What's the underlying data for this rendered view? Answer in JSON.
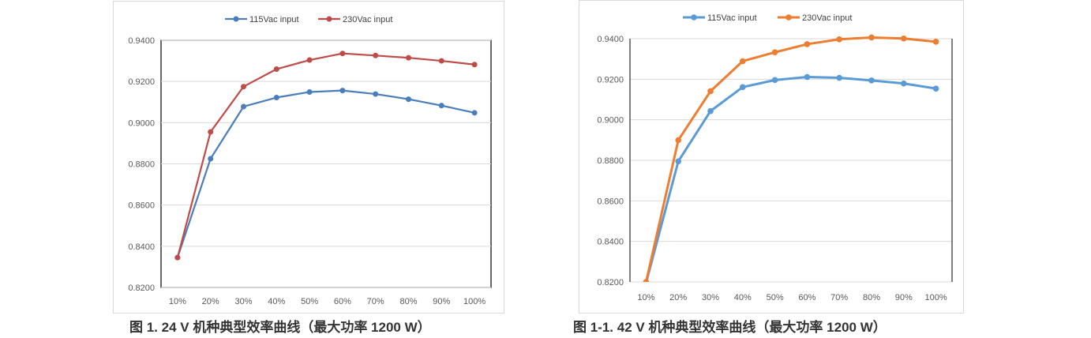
{
  "chart_data": [
    {
      "type": "line",
      "title": "",
      "xlabel": "",
      "ylabel": "",
      "categories": [
        "10%",
        "20%",
        "30%",
        "40%",
        "50%",
        "60%",
        "70%",
        "80%",
        "90%",
        "100%"
      ],
      "ylim": [
        0.82,
        0.94
      ],
      "yticks": [
        "0.8200",
        "0.8400",
        "0.8600",
        "0.8800",
        "0.9000",
        "0.9200",
        "0.9400"
      ],
      "legend": "top",
      "series": [
        {
          "name": "115Vac input",
          "color": "#4a7ebb",
          "values": [
            0.8345,
            0.8825,
            0.9078,
            0.9122,
            0.9149,
            0.9156,
            0.9139,
            0.9114,
            0.9083,
            0.9048
          ]
        },
        {
          "name": "230Vac input",
          "color": "#be4b48",
          "values": [
            0.8345,
            0.8955,
            0.9175,
            0.926,
            0.9304,
            0.9336,
            0.9326,
            0.9315,
            0.93,
            0.9282
          ]
        }
      ],
      "caption": "图 1.  24 V 机种典型效率曲线（最大功率 1200 W）"
    },
    {
      "type": "line",
      "title": "",
      "xlabel": "",
      "ylabel": "",
      "categories": [
        "10%",
        "20%",
        "30%",
        "40%",
        "50%",
        "60%",
        "70%",
        "80%",
        "90%",
        "100%"
      ],
      "ylim": [
        0.82,
        0.94
      ],
      "yticks": [
        "0.8200",
        "0.8400",
        "0.8600",
        "0.8800",
        "0.9000",
        "0.9200",
        "0.9400"
      ],
      "legend": "top",
      "series": [
        {
          "name": "115Vac input",
          "color": "#5b9bd5",
          "values": [
            0.8195,
            0.8795,
            0.9043,
            0.9161,
            0.9196,
            0.9211,
            0.9207,
            0.9194,
            0.9179,
            0.9154
          ]
        },
        {
          "name": "230Vac input",
          "color": "#ed7d31",
          "values": [
            0.82,
            0.8899,
            0.9141,
            0.9289,
            0.9333,
            0.9373,
            0.9397,
            0.9406,
            0.9401,
            0.9385
          ]
        }
      ],
      "caption": "图 1-1.  42 V 机种典型效率曲线（最大功率 1200 W）"
    }
  ]
}
